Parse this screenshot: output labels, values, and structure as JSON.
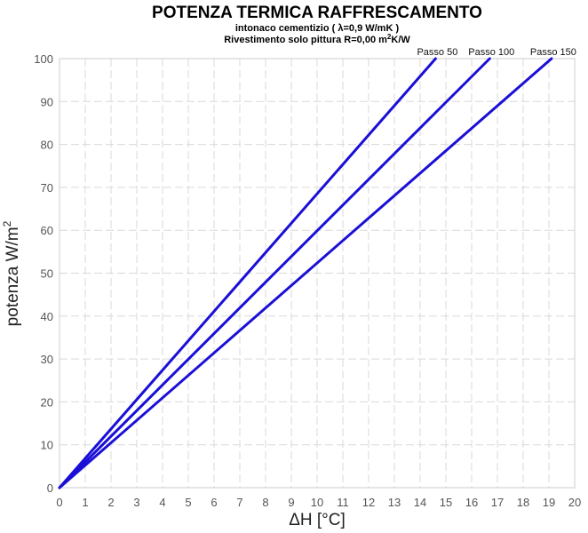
{
  "chart_data": {
    "type": "line",
    "title": "POTENZA TERMICA RAFFRESCAMENTO",
    "subtitle_lines": [
      "intonaco cementizio ( λ=0,9 W/mK )",
      "Rivestimento solo pittura R=0,00 m",
      "K/W"
    ],
    "subtitle_sup": "2",
    "xlabel": "ΔH [°C]",
    "ylabel": "potenza W/m",
    "ylabel_sup": "2",
    "xlim": [
      0,
      20
    ],
    "ylim": [
      0,
      100
    ],
    "xticks": [
      0,
      1,
      2,
      3,
      4,
      5,
      6,
      7,
      8,
      9,
      10,
      11,
      12,
      13,
      14,
      15,
      16,
      17,
      18,
      19,
      20
    ],
    "yticks": [
      0,
      10,
      20,
      30,
      40,
      50,
      60,
      70,
      80,
      90,
      100
    ],
    "grid": true,
    "line_color": "#1a0fd6",
    "series": [
      {
        "name": "Passo 50",
        "x": [
          0,
          14.6
        ],
        "y": [
          0,
          100
        ]
      },
      {
        "name": "Passo 100",
        "x": [
          0,
          16.7
        ],
        "y": [
          0,
          100
        ]
      },
      {
        "name": "Passo 150",
        "x": [
          0,
          19.1
        ],
        "y": [
          0,
          100
        ]
      }
    ]
  }
}
